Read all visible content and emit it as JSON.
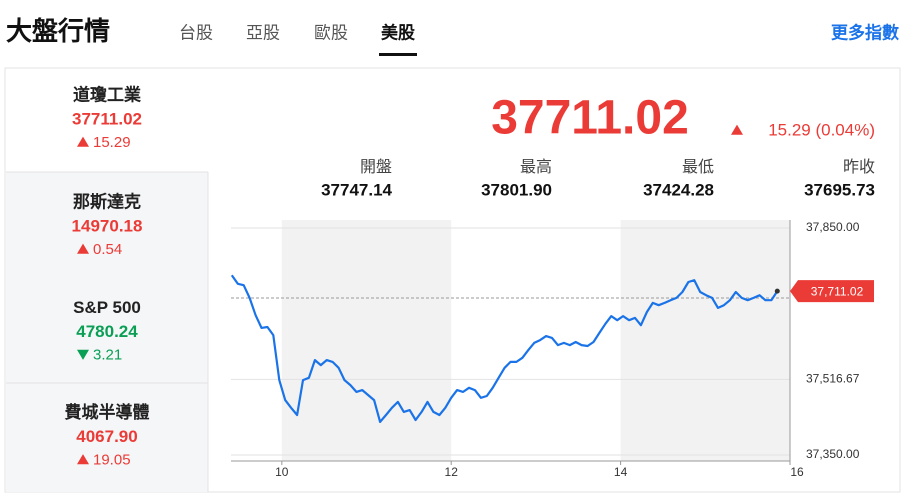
{
  "header": {
    "title": "大盤行情",
    "tabs": [
      "台股",
      "亞股",
      "歐股",
      "美股"
    ],
    "active_tab": 3,
    "more_link": "更多指數"
  },
  "indices": [
    {
      "name": "道瓊工業",
      "price": "37711.02",
      "change": "15.29",
      "direction": "up",
      "selected": true
    },
    {
      "name": "那斯達克",
      "price": "14970.18",
      "change": "0.54",
      "direction": "up",
      "selected": false
    },
    {
      "name": "S&P 500",
      "price": "4780.24",
      "change": "3.21",
      "direction": "down",
      "selected": false
    },
    {
      "name": "費城半導體",
      "price": "4067.90",
      "change": "19.05",
      "direction": "up",
      "selected": false
    }
  ],
  "quote": {
    "price": "37711.02",
    "change": "15.29 (0.04%)",
    "direction": "up",
    "stats": [
      {
        "label": "開盤",
        "value": "37747.14"
      },
      {
        "label": "最高",
        "value": "37801.90"
      },
      {
        "label": "最低",
        "value": "37424.28"
      },
      {
        "label": "昨收",
        "value": "37695.73"
      }
    ]
  },
  "chart_data": {
    "type": "line",
    "x": [
      9.41,
      9.48,
      9.55,
      9.62,
      9.69,
      9.76,
      9.83,
      9.9,
      9.97,
      10.04,
      10.11,
      10.18,
      10.25,
      10.32,
      10.39,
      10.46,
      10.53,
      10.6,
      10.67,
      10.74,
      10.81,
      10.88,
      10.95,
      11.02,
      11.09,
      11.16,
      11.23,
      11.3,
      11.37,
      11.44,
      11.51,
      11.58,
      11.65,
      11.72,
      11.79,
      11.86,
      11.93,
      12.0,
      12.07,
      12.14,
      12.21,
      12.28,
      12.35,
      12.42,
      12.49,
      12.56,
      12.63,
      12.7,
      12.77,
      12.84,
      12.91,
      12.98,
      13.05,
      13.12,
      13.19,
      13.26,
      13.33,
      13.4,
      13.47,
      13.54,
      13.61,
      13.68,
      13.75,
      13.82,
      13.89,
      13.96,
      14.03,
      14.1,
      14.17,
      14.24,
      14.31,
      14.38,
      14.45,
      14.52,
      14.59,
      14.66,
      14.73,
      14.8,
      14.87,
      14.94,
      15.01,
      15.08,
      15.15,
      15.22,
      15.29,
      15.36,
      15.43,
      15.5,
      15.57,
      15.64,
      15.71,
      15.78,
      15.85
    ],
    "series": [
      {
        "color": "#1a73e8",
        "values": [
          37746,
          37727,
          37724,
          37696,
          37658,
          37630,
          37632,
          37614,
          37515,
          37471,
          37454,
          37438,
          37515,
          37520,
          37559,
          37548,
          37559,
          37555,
          37542,
          37515,
          37504,
          37489,
          37493,
          37482,
          37471,
          37423,
          37438,
          37454,
          37467,
          37445,
          37449,
          37427,
          37445,
          37467,
          37445,
          37438,
          37454,
          37476,
          37493,
          37489,
          37498,
          37493,
          37476,
          37480,
          37498,
          37520,
          37542,
          37555,
          37555,
          37564,
          37581,
          37597,
          37603,
          37612,
          37608,
          37592,
          37597,
          37592,
          37599,
          37592,
          37590,
          37599,
          37619,
          37639,
          37656,
          37647,
          37656,
          37647,
          37652,
          37636,
          37665,
          37685,
          37680,
          37685,
          37691,
          37696,
          37709,
          37731,
          37735,
          37709,
          37702,
          37696,
          37674,
          37680,
          37691,
          37709,
          37696,
          37691,
          37696,
          37702,
          37691,
          37691,
          37711.02
        ]
      }
    ],
    "last_value_label": "37,711.02",
    "xlim": [
      9.4,
      16
    ],
    "xticks": [
      10,
      12,
      14,
      16
    ],
    "ylim": [
      37350,
      37850
    ],
    "yticks": [
      {
        "value": 37350,
        "label": "37,350.00"
      },
      {
        "value": 37516.67,
        "label": "37,516.67"
      },
      {
        "value": 37850,
        "label": "37,850.00"
      }
    ]
  }
}
